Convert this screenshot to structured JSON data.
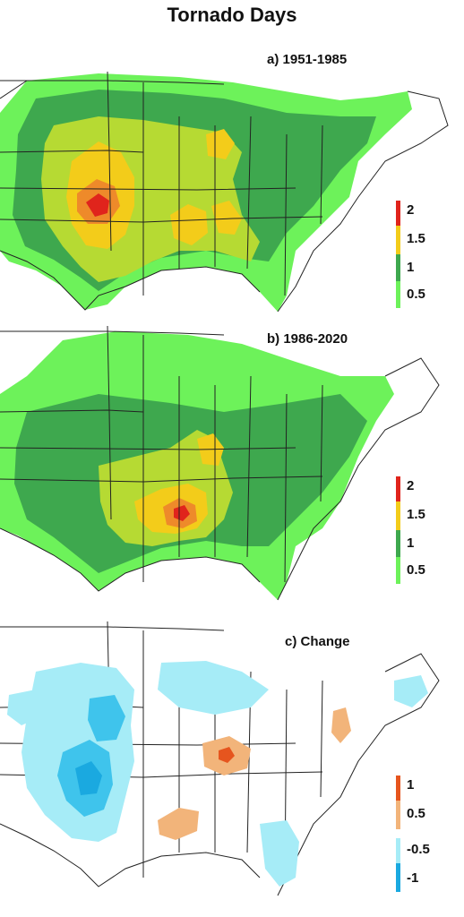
{
  "title": "Tornado Days",
  "colors": {
    "lt05": "#6df25a",
    "r05_1": "#3ea84e",
    "r1_15": "#b6da33",
    "r15_2": "#f3cc1a",
    "gt2a": "#ee8a2a",
    "gt2b": "#e0241c",
    "chg_pos1": "#f2b47a",
    "chg_pos2": "#e6551e",
    "chg_neg1": "#a6ecf7",
    "chg_neg2": "#3fc4ec",
    "chg_neg3": "#1aa9e0"
  },
  "panels": [
    {
      "label": "a) 1951-1985",
      "legend": [
        "2",
        "1.5",
        "1",
        "0.5"
      ],
      "legend_colors": [
        "#e0241c",
        "#f3cc1a",
        "#3ea84e",
        "#6df25a"
      ]
    },
    {
      "label": "b) 1986-2020",
      "legend": [
        "2",
        "1.5",
        "1",
        "0.5"
      ],
      "legend_colors": [
        "#e0241c",
        "#f3cc1a",
        "#3ea84e",
        "#6df25a"
      ]
    },
    {
      "label": "c) Change",
      "legend": [
        "1",
        "0.5",
        "-0.5",
        "-1"
      ],
      "legend_colors": [
        "#e6551e",
        "#f2b47a",
        "#a6ecf7",
        "#1aa9e0"
      ]
    }
  ]
}
